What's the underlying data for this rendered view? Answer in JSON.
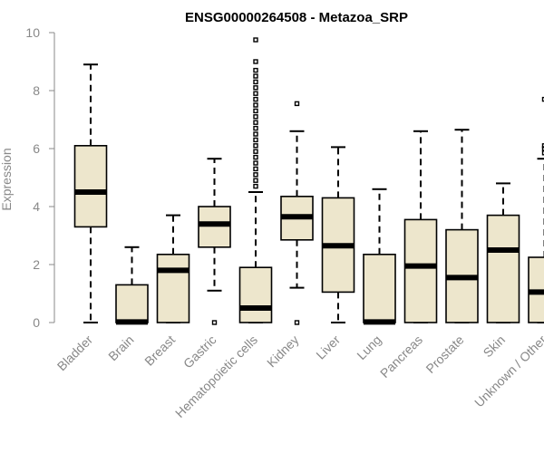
{
  "colors": {
    "box_fill": "#ede6cc",
    "box_stroke": "#000000",
    "axis": "#888888",
    "text": "#888888",
    "title": "#000000"
  },
  "chart_data": {
    "type": "box",
    "title": "ENSG00000264508 - Metazoa_SRP",
    "xlabel": "",
    "ylabel": "Expression",
    "ylim": [
      0,
      10
    ],
    "yticks": [
      "0",
      "2",
      "4",
      "6",
      "8",
      "10"
    ],
    "grid": false,
    "categories": [
      "Bladder",
      "Brain",
      "Breast",
      "Gastric",
      "Hematopoietic cells",
      "Kidney",
      "Liver",
      "Lung",
      "Pancreas",
      "Prostate",
      "Skin",
      "Unknown / Other"
    ],
    "boxes": [
      {
        "category": "Bladder",
        "whisker_low": 0.0,
        "q1": 3.3,
        "median": 4.5,
        "q3": 6.1,
        "whisker_high": 8.9,
        "outliers": []
      },
      {
        "category": "Brain",
        "whisker_low": 0.0,
        "q1": 0.0,
        "median": 0.02,
        "q3": 1.3,
        "whisker_high": 2.6,
        "outliers": []
      },
      {
        "category": "Breast",
        "whisker_low": 0.0,
        "q1": 0.0,
        "median": 1.8,
        "q3": 2.35,
        "whisker_high": 3.7,
        "outliers": []
      },
      {
        "category": "Gastric",
        "whisker_low": 1.1,
        "q1": 2.6,
        "median": 3.4,
        "q3": 4.0,
        "whisker_high": 5.65,
        "outliers": [
          0.0
        ]
      },
      {
        "category": "Hematopoietic cells",
        "whisker_low": 0.0,
        "q1": 0.0,
        "median": 0.5,
        "q3": 1.9,
        "whisker_high": 4.5,
        "outliers": [
          4.7,
          4.9,
          5.1,
          5.3,
          5.5,
          5.7,
          5.9,
          6.1,
          6.3,
          6.5,
          6.7,
          6.9,
          7.1,
          7.3,
          7.5,
          7.7,
          7.9,
          8.1,
          8.3,
          8.5,
          8.7,
          9.0,
          9.75
        ]
      },
      {
        "category": "Kidney",
        "whisker_low": 1.2,
        "q1": 2.85,
        "median": 3.65,
        "q3": 4.35,
        "whisker_high": 6.6,
        "outliers": [
          7.55,
          0.0
        ]
      },
      {
        "category": "Liver",
        "whisker_low": 0.0,
        "q1": 1.05,
        "median": 2.65,
        "q3": 4.3,
        "whisker_high": 6.05,
        "outliers": []
      },
      {
        "category": "Lung",
        "whisker_low": 0.0,
        "q1": 0.0,
        "median": 0.02,
        "q3": 2.35,
        "whisker_high": 4.6,
        "outliers": []
      },
      {
        "category": "Pancreas",
        "whisker_low": 0.0,
        "q1": 0.0,
        "median": 1.95,
        "q3": 3.55,
        "whisker_high": 6.6,
        "outliers": []
      },
      {
        "category": "Prostate",
        "whisker_low": 0.0,
        "q1": 0.0,
        "median": 1.55,
        "q3": 3.2,
        "whisker_high": 6.65,
        "outliers": []
      },
      {
        "category": "Skin",
        "whisker_low": 0.0,
        "q1": 0.0,
        "median": 2.5,
        "q3": 3.7,
        "whisker_high": 4.8,
        "outliers": []
      },
      {
        "category": "Unknown / Other",
        "whisker_low": 0.0,
        "q1": 0.0,
        "median": 1.05,
        "q3": 2.25,
        "whisker_high": 5.65,
        "outliers": [
          5.85,
          6.0,
          6.1,
          7.7
        ]
      }
    ]
  }
}
